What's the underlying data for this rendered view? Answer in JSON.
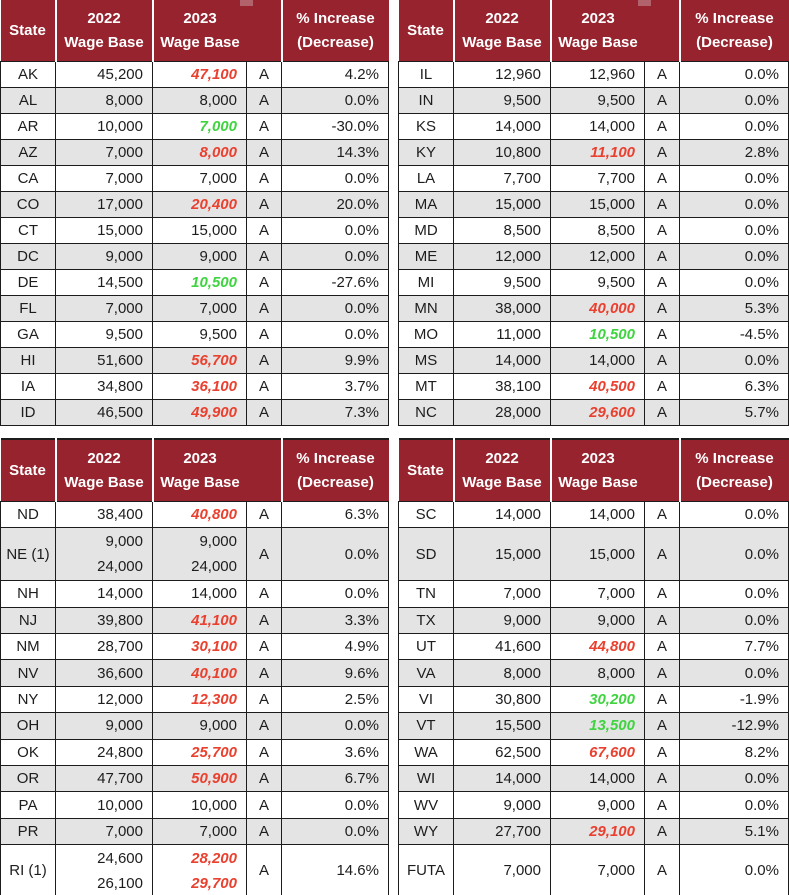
{
  "palette": {
    "header_bg": "#97232E",
    "header_text": "#FFFFFF",
    "row_bg": "#FFFFFF",
    "row_alt_bg": "#E4E4E4",
    "grid_border": "#1C1C1C",
    "increase_value_color": "#E9402F",
    "decrease_value_color": "#3FD43F",
    "header_notch_color": "#B2626A"
  },
  "header": {
    "state": "State",
    "col2022": "2022\nWage Base",
    "col2023": "2023\nWage Base",
    "flag": "",
    "pct": "% Increase\n(Decrease)"
  },
  "tables": [
    {
      "name": "states-ak-id",
      "rows": [
        {
          "state": "AK",
          "wb2022": [
            "45,200"
          ],
          "wb2023": [
            "47,100"
          ],
          "trend": "up",
          "flag": "A",
          "pct": "4.2%",
          "tall": false
        },
        {
          "state": "AL",
          "wb2022": [
            "8,000"
          ],
          "wb2023": [
            "8,000"
          ],
          "trend": "flat",
          "flag": "A",
          "pct": "0.0%",
          "tall": false
        },
        {
          "state": "AR",
          "wb2022": [
            "10,000"
          ],
          "wb2023": [
            "7,000"
          ],
          "trend": "down",
          "flag": "A",
          "pct": "-30.0%",
          "tall": false
        },
        {
          "state": "AZ",
          "wb2022": [
            "7,000"
          ],
          "wb2023": [
            "8,000"
          ],
          "trend": "up",
          "flag": "A",
          "pct": "14.3%",
          "tall": false
        },
        {
          "state": "CA",
          "wb2022": [
            "7,000"
          ],
          "wb2023": [
            "7,000"
          ],
          "trend": "flat",
          "flag": "A",
          "pct": "0.0%",
          "tall": false
        },
        {
          "state": "CO",
          "wb2022": [
            "17,000"
          ],
          "wb2023": [
            "20,400"
          ],
          "trend": "up",
          "flag": "A",
          "pct": "20.0%",
          "tall": false
        },
        {
          "state": "CT",
          "wb2022": [
            "15,000"
          ],
          "wb2023": [
            "15,000"
          ],
          "trend": "flat",
          "flag": "A",
          "pct": "0.0%",
          "tall": false
        },
        {
          "state": "DC",
          "wb2022": [
            "9,000"
          ],
          "wb2023": [
            "9,000"
          ],
          "trend": "flat",
          "flag": "A",
          "pct": "0.0%",
          "tall": false
        },
        {
          "state": "DE",
          "wb2022": [
            "14,500"
          ],
          "wb2023": [
            "10,500"
          ],
          "trend": "down",
          "flag": "A",
          "pct": "-27.6%",
          "tall": false
        },
        {
          "state": "FL",
          "wb2022": [
            "7,000"
          ],
          "wb2023": [
            "7,000"
          ],
          "trend": "flat",
          "flag": "A",
          "pct": "0.0%",
          "tall": false
        },
        {
          "state": "GA",
          "wb2022": [
            "9,500"
          ],
          "wb2023": [
            "9,500"
          ],
          "trend": "flat",
          "flag": "A",
          "pct": "0.0%",
          "tall": false
        },
        {
          "state": "HI",
          "wb2022": [
            "51,600"
          ],
          "wb2023": [
            "56,700"
          ],
          "trend": "up",
          "flag": "A",
          "pct": "9.9%",
          "tall": false
        },
        {
          "state": "IA",
          "wb2022": [
            "34,800"
          ],
          "wb2023": [
            "36,100"
          ],
          "trend": "up",
          "flag": "A",
          "pct": "3.7%",
          "tall": false
        },
        {
          "state": "ID",
          "wb2022": [
            "46,500"
          ],
          "wb2023": [
            "49,900"
          ],
          "trend": "up",
          "flag": "A",
          "pct": "7.3%",
          "tall": false
        }
      ]
    },
    {
      "name": "states-il-nc",
      "rows": [
        {
          "state": "IL",
          "wb2022": [
            "12,960"
          ],
          "wb2023": [
            "12,960"
          ],
          "trend": "flat",
          "flag": "A",
          "pct": "0.0%",
          "tall": false
        },
        {
          "state": "IN",
          "wb2022": [
            "9,500"
          ],
          "wb2023": [
            "9,500"
          ],
          "trend": "flat",
          "flag": "A",
          "pct": "0.0%",
          "tall": false
        },
        {
          "state": "KS",
          "wb2022": [
            "14,000"
          ],
          "wb2023": [
            "14,000"
          ],
          "trend": "flat",
          "flag": "A",
          "pct": "0.0%",
          "tall": false
        },
        {
          "state": "KY",
          "wb2022": [
            "10,800"
          ],
          "wb2023": [
            "11,100"
          ],
          "trend": "up",
          "flag": "A",
          "pct": "2.8%",
          "tall": false
        },
        {
          "state": "LA",
          "wb2022": [
            "7,700"
          ],
          "wb2023": [
            "7,700"
          ],
          "trend": "flat",
          "flag": "A",
          "pct": "0.0%",
          "tall": false
        },
        {
          "state": "MA",
          "wb2022": [
            "15,000"
          ],
          "wb2023": [
            "15,000"
          ],
          "trend": "flat",
          "flag": "A",
          "pct": "0.0%",
          "tall": false
        },
        {
          "state": "MD",
          "wb2022": [
            "8,500"
          ],
          "wb2023": [
            "8,500"
          ],
          "trend": "flat",
          "flag": "A",
          "pct": "0.0%",
          "tall": false
        },
        {
          "state": "ME",
          "wb2022": [
            "12,000"
          ],
          "wb2023": [
            "12,000"
          ],
          "trend": "flat",
          "flag": "A",
          "pct": "0.0%",
          "tall": false
        },
        {
          "state": "MI",
          "wb2022": [
            "9,500"
          ],
          "wb2023": [
            "9,500"
          ],
          "trend": "flat",
          "flag": "A",
          "pct": "0.0%",
          "tall": false
        },
        {
          "state": "MN",
          "wb2022": [
            "38,000"
          ],
          "wb2023": [
            "40,000"
          ],
          "trend": "up",
          "flag": "A",
          "pct": "5.3%",
          "tall": false
        },
        {
          "state": "MO",
          "wb2022": [
            "11,000"
          ],
          "wb2023": [
            "10,500"
          ],
          "trend": "down",
          "flag": "A",
          "pct": "-4.5%",
          "tall": false
        },
        {
          "state": "MS",
          "wb2022": [
            "14,000"
          ],
          "wb2023": [
            "14,000"
          ],
          "trend": "flat",
          "flag": "A",
          "pct": "0.0%",
          "tall": false
        },
        {
          "state": "MT",
          "wb2022": [
            "38,100"
          ],
          "wb2023": [
            "40,500"
          ],
          "trend": "up",
          "flag": "A",
          "pct": "6.3%",
          "tall": false
        },
        {
          "state": "NC",
          "wb2022": [
            "28,000"
          ],
          "wb2023": [
            "29,600"
          ],
          "trend": "up",
          "flag": "A",
          "pct": "5.7%",
          "tall": false
        }
      ]
    },
    {
      "name": "states-nd-ri",
      "rows": [
        {
          "state": "ND",
          "wb2022": [
            "38,400"
          ],
          "wb2023": [
            "40,800"
          ],
          "trend": "up",
          "flag": "A",
          "pct": "6.3%",
          "tall": false
        },
        {
          "state": "NE (1)",
          "wb2022": [
            "9,000",
            "24,000"
          ],
          "wb2023": [
            "9,000",
            "24,000"
          ],
          "trend": "flat",
          "flag": "A",
          "pct": "0.0%",
          "tall": true
        },
        {
          "state": "NH",
          "wb2022": [
            "14,000"
          ],
          "wb2023": [
            "14,000"
          ],
          "trend": "flat",
          "flag": "A",
          "pct": "0.0%",
          "tall": false
        },
        {
          "state": "NJ",
          "wb2022": [
            "39,800"
          ],
          "wb2023": [
            "41,100"
          ],
          "trend": "up",
          "flag": "A",
          "pct": "3.3%",
          "tall": false
        },
        {
          "state": "NM",
          "wb2022": [
            "28,700"
          ],
          "wb2023": [
            "30,100"
          ],
          "trend": "up",
          "flag": "A",
          "pct": "4.9%",
          "tall": false
        },
        {
          "state": "NV",
          "wb2022": [
            "36,600"
          ],
          "wb2023": [
            "40,100"
          ],
          "trend": "up",
          "flag": "A",
          "pct": "9.6%",
          "tall": false
        },
        {
          "state": "NY",
          "wb2022": [
            "12,000"
          ],
          "wb2023": [
            "12,300"
          ],
          "trend": "up",
          "flag": "A",
          "pct": "2.5%",
          "tall": false
        },
        {
          "state": "OH",
          "wb2022": [
            "9,000"
          ],
          "wb2023": [
            "9,000"
          ],
          "trend": "flat",
          "flag": "A",
          "pct": "0.0%",
          "tall": false
        },
        {
          "state": "OK",
          "wb2022": [
            "24,800"
          ],
          "wb2023": [
            "25,700"
          ],
          "trend": "up",
          "flag": "A",
          "pct": "3.6%",
          "tall": false
        },
        {
          "state": "OR",
          "wb2022": [
            "47,700"
          ],
          "wb2023": [
            "50,900"
          ],
          "trend": "up",
          "flag": "A",
          "pct": "6.7%",
          "tall": false
        },
        {
          "state": "PA",
          "wb2022": [
            "10,000"
          ],
          "wb2023": [
            "10,000"
          ],
          "trend": "flat",
          "flag": "A",
          "pct": "0.0%",
          "tall": false
        },
        {
          "state": "PR",
          "wb2022": [
            "7,000"
          ],
          "wb2023": [
            "7,000"
          ],
          "trend": "flat",
          "flag": "A",
          "pct": "0.0%",
          "tall": false
        },
        {
          "state": "RI (1)",
          "wb2022": [
            "24,600",
            "26,100"
          ],
          "wb2023": [
            "28,200",
            "29,700"
          ],
          "trend": "up",
          "flag": "A",
          "pct": "14.6%",
          "tall": true
        }
      ]
    },
    {
      "name": "states-sc-futa",
      "rows": [
        {
          "state": "SC",
          "wb2022": [
            "14,000"
          ],
          "wb2023": [
            "14,000"
          ],
          "trend": "flat",
          "flag": "A",
          "pct": "0.0%",
          "tall": false
        },
        {
          "state": "SD",
          "wb2022": [
            "15,000"
          ],
          "wb2023": [
            "15,000"
          ],
          "trend": "flat",
          "flag": "A",
          "pct": "0.0%",
          "tall": true
        },
        {
          "state": "TN",
          "wb2022": [
            "7,000"
          ],
          "wb2023": [
            "7,000"
          ],
          "trend": "flat",
          "flag": "A",
          "pct": "0.0%",
          "tall": false
        },
        {
          "state": "TX",
          "wb2022": [
            "9,000"
          ],
          "wb2023": [
            "9,000"
          ],
          "trend": "flat",
          "flag": "A",
          "pct": "0.0%",
          "tall": false
        },
        {
          "state": "UT",
          "wb2022": [
            "41,600"
          ],
          "wb2023": [
            "44,800"
          ],
          "trend": "up",
          "flag": "A",
          "pct": "7.7%",
          "tall": false
        },
        {
          "state": "VA",
          "wb2022": [
            "8,000"
          ],
          "wb2023": [
            "8,000"
          ],
          "trend": "flat",
          "flag": "A",
          "pct": "0.0%",
          "tall": false
        },
        {
          "state": "VI",
          "wb2022": [
            "30,800"
          ],
          "wb2023": [
            "30,200"
          ],
          "trend": "down",
          "flag": "A",
          "pct": "-1.9%",
          "tall": false
        },
        {
          "state": "VT",
          "wb2022": [
            "15,500"
          ],
          "wb2023": [
            "13,500"
          ],
          "trend": "down",
          "flag": "A",
          "pct": "-12.9%",
          "tall": false
        },
        {
          "state": "WA",
          "wb2022": [
            "62,500"
          ],
          "wb2023": [
            "67,600"
          ],
          "trend": "up",
          "flag": "A",
          "pct": "8.2%",
          "tall": false
        },
        {
          "state": "WI",
          "wb2022": [
            "14,000"
          ],
          "wb2023": [
            "14,000"
          ],
          "trend": "flat",
          "flag": "A",
          "pct": "0.0%",
          "tall": false
        },
        {
          "state": "WV",
          "wb2022": [
            "9,000"
          ],
          "wb2023": [
            "9,000"
          ],
          "trend": "flat",
          "flag": "A",
          "pct": "0.0%",
          "tall": false
        },
        {
          "state": "WY",
          "wb2022": [
            "27,700"
          ],
          "wb2023": [
            "29,100"
          ],
          "trend": "up",
          "flag": "A",
          "pct": "5.1%",
          "tall": false
        },
        {
          "state": "FUTA",
          "wb2022": [
            "7,000"
          ],
          "wb2023": [
            "7,000"
          ],
          "trend": "flat",
          "flag": "A",
          "pct": "0.0%",
          "tall": true
        }
      ]
    }
  ]
}
